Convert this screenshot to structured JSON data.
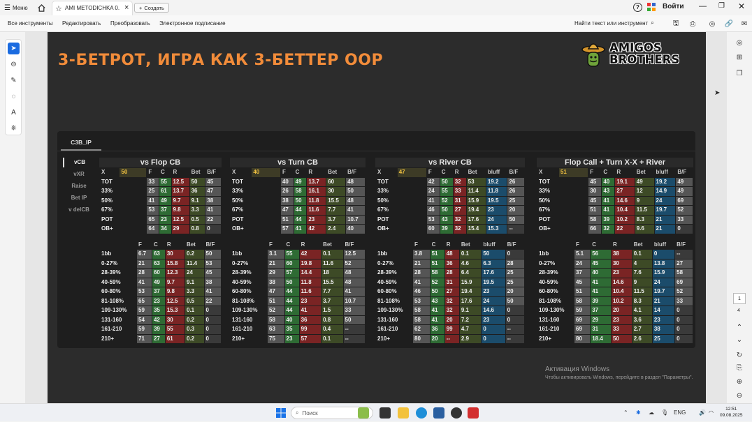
{
  "titlebar": {
    "menu": "Меню",
    "tab_title": "AMI METODICHKA 0...",
    "new_tab": "Создать",
    "signin": "Войти"
  },
  "toolbar": {
    "items": [
      "Все инструменты",
      "Редактировать",
      "Преобразовать",
      "Электронное подписание"
    ],
    "search": "Найти текст или инструмент"
  },
  "slide": {
    "title": "3-БЕТРОТ, ИГРА КАК 3-БЕТТЕР OOP",
    "logo_line1": "AMIGOS",
    "logo_line2": "BROTHERS",
    "card_tab": "C3B_IP",
    "side_tabs": [
      "vCB",
      "vXR",
      "Raise",
      "Bet IP",
      "v delCB"
    ],
    "blocks": [
      {
        "title": "vs Flop CB",
        "x_value": "50",
        "top_header": [
          "X",
          "",
          "F",
          "C",
          "R",
          "Bet",
          "B/F"
        ],
        "top_rows": [
          [
            "TOT",
            "33",
            "55",
            "12.5",
            "50",
            "45"
          ],
          [
            "33%",
            "25",
            "61",
            "13.7",
            "36",
            "47"
          ],
          [
            "50%",
            "41",
            "49",
            "9.7",
            "9.1",
            "38"
          ],
          [
            "67%",
            "53",
            "37",
            "9.8",
            "3.3",
            "41"
          ],
          [
            "POT",
            "65",
            "23",
            "12.5",
            "0.5",
            "22"
          ],
          [
            "OB+",
            "64",
            "34",
            "29",
            "0.8",
            "0"
          ]
        ],
        "bottom_header": [
          "",
          "F",
          "C",
          "R",
          "Bet",
          "B/F"
        ],
        "bottom_rows": [
          [
            "1bb",
            "6.7",
            "63",
            "30",
            "0.2",
            "50"
          ],
          [
            "0-27%",
            "21",
            "63",
            "15.8",
            "11.4",
            "53"
          ],
          [
            "28-39%",
            "28",
            "60",
            "12.3",
            "24",
            "45"
          ],
          [
            "40-59%",
            "41",
            "49",
            "9.7",
            "9.1",
            "38"
          ],
          [
            "60-80%",
            "53",
            "37",
            "9.8",
            "3.3",
            "41"
          ],
          [
            "81-108%",
            "65",
            "23",
            "12.5",
            "0.5",
            "22"
          ],
          [
            "109-130%",
            "59",
            "35",
            "15.3",
            "0.1",
            "0"
          ],
          [
            "131-160",
            "54",
            "42",
            "30",
            "0.2",
            "0"
          ],
          [
            "161-210",
            "59",
            "39",
            "55",
            "0.3",
            "0"
          ],
          [
            "210+",
            "71",
            "27",
            "61",
            "0.2",
            "0"
          ]
        ]
      },
      {
        "title": "vs Turn CB",
        "x_value": "40",
        "top_header": [
          "X",
          "",
          "F",
          "C",
          "R",
          "Bet",
          "B/F"
        ],
        "top_rows": [
          [
            "TOT",
            "40",
            "49",
            "13.7",
            "60",
            "48"
          ],
          [
            "33%",
            "26",
            "58",
            "16.1",
            "30",
            "50"
          ],
          [
            "50%",
            "38",
            "50",
            "11.8",
            "15.5",
            "48"
          ],
          [
            "67%",
            "47",
            "44",
            "11.6",
            "7.7",
            "41"
          ],
          [
            "POT",
            "51",
            "44",
            "23",
            "3.7",
            "10.7"
          ],
          [
            "OB+",
            "57",
            "41",
            "42",
            "2.4",
            "40"
          ]
        ],
        "bottom_header": [
          "",
          "F",
          "C",
          "R",
          "Bet",
          "B/F"
        ],
        "bottom_rows": [
          [
            "1bb",
            "3.1",
            "55",
            "42",
            "0.1",
            "12.5"
          ],
          [
            "0-27%",
            "21",
            "60",
            "19.8",
            "11.6",
            "52"
          ],
          [
            "28-39%",
            "29",
            "57",
            "14.4",
            "18",
            "48"
          ],
          [
            "40-59%",
            "38",
            "50",
            "11.8",
            "15.5",
            "48"
          ],
          [
            "60-80%",
            "47",
            "44",
            "11.6",
            "7.7",
            "41"
          ],
          [
            "81-108%",
            "51",
            "44",
            "23",
            "3.7",
            "10.7"
          ],
          [
            "109-130%",
            "52",
            "44",
            "41",
            "1.5",
            "33"
          ],
          [
            "131-160",
            "58",
            "40",
            "36",
            "0.8",
            "50"
          ],
          [
            "161-210",
            "63",
            "35",
            "99",
            "0.4",
            "--"
          ],
          [
            "210+",
            "75",
            "23",
            "57",
            "0.1",
            "--"
          ]
        ]
      },
      {
        "title": "vs River CB",
        "x_value": "47",
        "top_header": [
          "X",
          "",
          "F",
          "C",
          "R",
          "Bet",
          "bluff",
          "B/F"
        ],
        "top_rows": [
          [
            "TOT",
            "42",
            "50",
            "32",
            "53",
            "19.2",
            "26"
          ],
          [
            "33%",
            "24",
            "55",
            "33",
            "11.4",
            "11.8",
            "26"
          ],
          [
            "50%",
            "41",
            "52",
            "31",
            "15.9",
            "19.5",
            "25"
          ],
          [
            "67%",
            "46",
            "50",
            "27",
            "19.4",
            "23",
            "20"
          ],
          [
            "POT",
            "53",
            "43",
            "32",
            "17.6",
            "24",
            "50"
          ],
          [
            "OB+",
            "60",
            "39",
            "32",
            "15.4",
            "15.3",
            "--"
          ]
        ],
        "bottom_header": [
          "",
          "F",
          "C",
          "R",
          "Bet",
          "bluff",
          "B/F"
        ],
        "bottom_rows": [
          [
            "1bb",
            "3.8",
            "51",
            "48",
            "0.1",
            "50",
            "0"
          ],
          [
            "0-27%",
            "21",
            "51",
            "36",
            "4.6",
            "6.3",
            "28"
          ],
          [
            "28-39%",
            "28",
            "58",
            "28",
            "6.4",
            "17.6",
            "25"
          ],
          [
            "40-59%",
            "41",
            "52",
            "31",
            "15.9",
            "19.5",
            "25"
          ],
          [
            "60-80%",
            "46",
            "50",
            "27",
            "19.4",
            "23",
            "20"
          ],
          [
            "81-108%",
            "53",
            "43",
            "32",
            "17.6",
            "24",
            "50"
          ],
          [
            "109-130%",
            "58",
            "41",
            "32",
            "9.1",
            "14.6",
            "0"
          ],
          [
            "131-160",
            "58",
            "41",
            "20",
            "7.2",
            "23",
            "0"
          ],
          [
            "161-210",
            "62",
            "36",
            "99",
            "4.7",
            "0",
            "--"
          ],
          [
            "210+",
            "80",
            "20",
            "--",
            "2.9",
            "0",
            "--"
          ]
        ]
      },
      {
        "title": "Flop Call + Turn X-X + River",
        "x_value": "51",
        "top_header": [
          "X",
          "",
          "F",
          "C",
          "R",
          "Bet",
          "bluff",
          "B/F"
        ],
        "top_rows": [
          [
            "TOT",
            "45",
            "40",
            "19.1",
            "49",
            "19.2",
            "49"
          ],
          [
            "33%",
            "30",
            "43",
            "27",
            "12",
            "14.9",
            "49"
          ],
          [
            "50%",
            "45",
            "41",
            "14.6",
            "9",
            "24",
            "69"
          ],
          [
            "67%",
            "51",
            "41",
            "10.4",
            "11.5",
            "19.7",
            "52"
          ],
          [
            "POT",
            "58",
            "39",
            "10.2",
            "8.3",
            "21",
            "33"
          ],
          [
            "OB+",
            "66",
            "32",
            "22",
            "9.6",
            "21",
            "0"
          ]
        ],
        "bottom_header": [
          "",
          "F",
          "C",
          "R",
          "Bet",
          "bluff",
          "B/F"
        ],
        "bottom_rows": [
          [
            "1bb",
            "5.1",
            "56",
            "38",
            "0.1",
            "0",
            "--"
          ],
          [
            "0-27%",
            "24",
            "45",
            "30",
            "4",
            "13.8",
            "27"
          ],
          [
            "28-39%",
            "37",
            "40",
            "23",
            "7.6",
            "15.9",
            "58"
          ],
          [
            "40-59%",
            "45",
            "41",
            "14.6",
            "9",
            "24",
            "69"
          ],
          [
            "60-80%",
            "51",
            "41",
            "10.4",
            "11.5",
            "19.7",
            "52"
          ],
          [
            "81-108%",
            "58",
            "39",
            "10.2",
            "8.3",
            "21",
            "33"
          ],
          [
            "109-130%",
            "59",
            "37",
            "20",
            "4.1",
            "14",
            "0"
          ],
          [
            "131-160",
            "69",
            "29",
            "23",
            "3.6",
            "23",
            "0"
          ],
          [
            "161-210",
            "69",
            "31",
            "33",
            "2.7",
            "38",
            "0"
          ],
          [
            "210+",
            "80",
            "18.4",
            "50",
            "2.6",
            "25",
            "0"
          ]
        ]
      }
    ]
  },
  "watermark": {
    "line1": "Активация Windows",
    "line2": "Чтобы активировать Windows, перейдите в раздел \"Параметры\"."
  },
  "pager": {
    "current": "1",
    "total": "4"
  },
  "taskbar": {
    "search": "Поиск",
    "lang": "ENG",
    "time": "12:51",
    "date": "09.08.2025"
  },
  "colors": {
    "title_orange": "#f28c3a",
    "card_bg": "#1e1e1e",
    "green": "#2e6b34",
    "yellow": "#6f6a1c",
    "red": "#7a2424",
    "blue": "#1b4c6b",
    "grey": "#555555",
    "darkgrey": "#3a3a3a"
  }
}
